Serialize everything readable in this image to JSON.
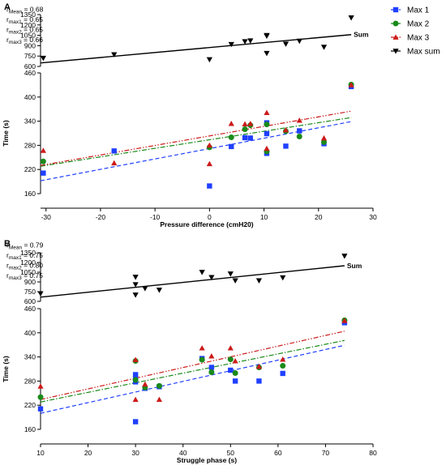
{
  "colors": {
    "max1": "#1f3fff",
    "max2": "#1a8a1a",
    "max3": "#cc1a1a",
    "sum": "#000000"
  },
  "legend": {
    "items": [
      {
        "key": "max1",
        "label": "Max 1",
        "marker": "square"
      },
      {
        "key": "max2",
        "label": "Max 2",
        "marker": "circle"
      },
      {
        "key": "max3",
        "label": "Max 3",
        "marker": "triangle-up"
      },
      {
        "key": "sum",
        "label": "Max sum",
        "marker": "triangle-down"
      }
    ]
  },
  "chart_data": [
    {
      "panel": "A",
      "type": "scatter",
      "xlabel": "Pressure difference (cmH20)",
      "ylabel": "Time (s)",
      "xlim": [
        -31,
        30
      ],
      "xticks": [
        -30,
        -20,
        -10,
        0,
        10,
        20,
        30
      ],
      "ylim_lower": [
        160,
        460
      ],
      "yticks_lower": [
        160,
        220,
        280,
        340,
        400,
        460
      ],
      "ylim_upper": [
        600,
        1350
      ],
      "yticks_upper": [
        600,
        750,
        900,
        1050,
        1200,
        1350
      ],
      "yticklabels_upper": [
        "600",
        "750",
        "900",
        "1050",
        "1200",
        "1350"
      ],
      "sum_line_label": "Sum",
      "stats": [
        {
          "r": "r",
          "sub": "Mean",
          "value": "= 0.68"
        },
        {
          "r": "r",
          "sub": "max1",
          "value": "= 0.65"
        },
        {
          "r": "r",
          "sub": "max2",
          "value": "= 0.65"
        },
        {
          "r": "r",
          "sub": "max3",
          "value": "= 0.66"
        }
      ],
      "series": [
        {
          "key": "max1",
          "name": "Max 1",
          "points": [
            [
              -30.5,
              211
            ],
            [
              -17.5,
              266
            ],
            [
              0,
              179
            ],
            [
              4,
              277
            ],
            [
              6.5,
              299
            ],
            [
              7.5,
              298
            ],
            [
              10.5,
              260
            ],
            [
              10.5,
              336
            ],
            [
              10.5,
              309
            ],
            [
              14,
              278
            ],
            [
              16.5,
              316
            ],
            [
              21,
              284
            ],
            [
              26,
              426
            ]
          ]
        },
        {
          "key": "max2",
          "name": "Max 2",
          "points": [
            [
              -30.5,
              240
            ],
            [
              0,
              275
            ],
            [
              4,
              300
            ],
            [
              6.5,
              320
            ],
            [
              7.5,
              330
            ],
            [
              10.5,
              265
            ],
            [
              10.5,
              332
            ],
            [
              14,
              315
            ],
            [
              16.5,
              302
            ],
            [
              21,
              288
            ],
            [
              26,
              431
            ]
          ]
        },
        {
          "key": "max3",
          "name": "Max 3",
          "points": [
            [
              -30.5,
              267
            ],
            [
              -17.5,
              236
            ],
            [
              0,
              234
            ],
            [
              0,
              280
            ],
            [
              4,
              334
            ],
            [
              6.5,
              333
            ],
            [
              7.5,
              334
            ],
            [
              10.5,
              361
            ],
            [
              10.5,
              272
            ],
            [
              14,
              318
            ],
            [
              16.5,
              342
            ],
            [
              21,
              298
            ],
            [
              26,
              430
            ]
          ]
        },
        {
          "key": "sum",
          "name": "Max sum",
          "points": [
            [
              -30.5,
              720
            ],
            [
              -17.5,
              772
            ],
            [
              0,
              700
            ],
            [
              4,
              920
            ],
            [
              6.5,
              960
            ],
            [
              7.5,
              972
            ],
            [
              10.5,
              1040
            ],
            [
              10.5,
              1050
            ],
            [
              10.5,
              790
            ],
            [
              14,
              925
            ],
            [
              16.5,
              968
            ],
            [
              21,
              880
            ],
            [
              26,
              1305
            ]
          ]
        }
      ],
      "fits": [
        {
          "key": "max1",
          "style": "dashed",
          "x": [
            -31,
            26
          ],
          "y": [
            192,
            339
          ]
        },
        {
          "key": "max2",
          "style": "dashdot",
          "x": [
            -31,
            26
          ],
          "y": [
            228,
            349
          ]
        },
        {
          "key": "max3",
          "style": "dashdotdot",
          "x": [
            -31,
            26
          ],
          "y": [
            230,
            365
          ]
        },
        {
          "key": "sum",
          "style": "solid",
          "x": [
            -31,
            26
          ],
          "y": [
            650,
            1060
          ]
        }
      ]
    },
    {
      "panel": "B",
      "type": "scatter",
      "xlabel": "Struggle phase (s)",
      "ylabel": "Time (s)",
      "xlim": [
        10,
        80
      ],
      "xticks": [
        10,
        20,
        30,
        40,
        50,
        60,
        70,
        80
      ],
      "ylim_lower": [
        160,
        460
      ],
      "yticks_lower": [
        160,
        220,
        280,
        340,
        400,
        460
      ],
      "ylim_upper": [
        600,
        1350
      ],
      "yticks_upper": [
        600,
        750,
        900,
        1050,
        1200,
        1350
      ],
      "yticklabels_upper": [
        "600",
        "750",
        "900",
        "1050",
        "1200",
        "1350"
      ],
      "sum_line_label": "Sum",
      "stats": [
        {
          "r": "r",
          "sub": "Mean",
          "value": "= 0.79"
        },
        {
          "r": "r",
          "sub": "max1",
          "value": "= 0.75"
        },
        {
          "r": "r",
          "sub": "max2",
          "value": "= 0.80"
        },
        {
          "r": "r",
          "sub": "max3",
          "value": "= 0.75"
        }
      ],
      "series": [
        {
          "key": "max1",
          "name": "Max 1",
          "points": [
            [
              10,
              211
            ],
            [
              30,
              179
            ],
            [
              30,
              278
            ],
            [
              30,
              287
            ],
            [
              30,
              296
            ],
            [
              32,
              262
            ],
            [
              35,
              266
            ],
            [
              44,
              336
            ],
            [
              46,
              314
            ],
            [
              50,
              307
            ],
            [
              51,
              280
            ],
            [
              56,
              280
            ],
            [
              61,
              299
            ],
            [
              74,
              425
            ]
          ]
        },
        {
          "key": "max2",
          "name": "Max 2",
          "points": [
            [
              10,
              240
            ],
            [
              30,
              283
            ],
            [
              30,
              330
            ],
            [
              32,
              264
            ],
            [
              35,
              268
            ],
            [
              44,
              333
            ],
            [
              46,
              302
            ],
            [
              50,
              334
            ],
            [
              51,
              300
            ],
            [
              56,
              314
            ],
            [
              61,
              318
            ],
            [
              74,
              431
            ]
          ]
        },
        {
          "key": "max3",
          "name": "Max 3",
          "points": [
            [
              10,
              267
            ],
            [
              30,
              234
            ],
            [
              30,
              333
            ],
            [
              32,
              272
            ],
            [
              35,
              234
            ],
            [
              44,
              362
            ],
            [
              46,
              342
            ],
            [
              50,
              362
            ],
            [
              51,
              330
            ],
            [
              56,
              316
            ],
            [
              61,
              334
            ],
            [
              74,
              430
            ]
          ]
        },
        {
          "key": "sum",
          "name": "Max sum",
          "points": [
            [
              10,
              720
            ],
            [
              30,
              700
            ],
            [
              30,
              860
            ],
            [
              30,
              975
            ],
            [
              32,
              800
            ],
            [
              35,
              775
            ],
            [
              44,
              1050
            ],
            [
              46,
              970
            ],
            [
              50,
              1025
            ],
            [
              51,
              920
            ],
            [
              56,
              920
            ],
            [
              61,
              965
            ],
            [
              74,
              1300
            ]
          ]
        }
      ],
      "fits": [
        {
          "key": "max1",
          "style": "dashed",
          "x": [
            10,
            74
          ],
          "y": [
            200,
            369
          ]
        },
        {
          "key": "max2",
          "style": "dashdot",
          "x": [
            10,
            74
          ],
          "y": [
            228,
            381
          ]
        },
        {
          "key": "max3",
          "style": "dashdotdot",
          "x": [
            10,
            74
          ],
          "y": [
            234,
            404
          ]
        },
        {
          "key": "sum",
          "style": "solid",
          "x": [
            10,
            74
          ],
          "y": [
            665,
            1150
          ]
        }
      ]
    }
  ]
}
